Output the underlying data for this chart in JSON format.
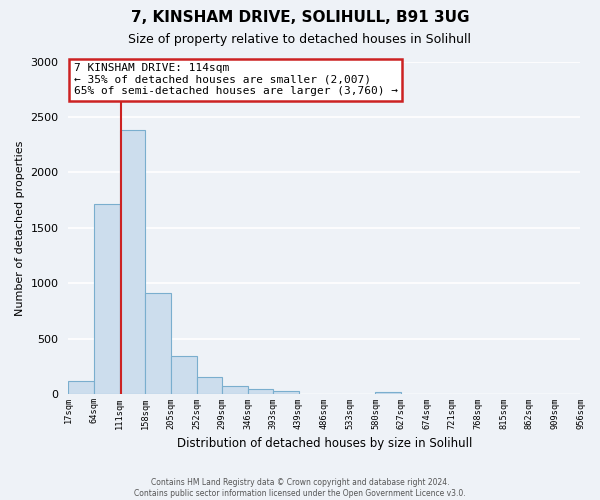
{
  "title": "7, KINSHAM DRIVE, SOLIHULL, B91 3UG",
  "subtitle": "Size of property relative to detached houses in Solihull",
  "xlabel": "Distribution of detached houses by size in Solihull",
  "ylabel": "Number of detached properties",
  "bar_edges": [
    17,
    64,
    111,
    158,
    205,
    252,
    299,
    346,
    393,
    439,
    486,
    533,
    580,
    627,
    674,
    721,
    768,
    815,
    862,
    909,
    956
  ],
  "bar_heights": [
    120,
    1720,
    2380,
    910,
    345,
    155,
    80,
    45,
    30,
    0,
    0,
    0,
    25,
    0,
    0,
    0,
    0,
    0,
    0,
    0
  ],
  "bar_color": "#ccdded",
  "bar_edge_color": "#7aaece",
  "property_line_x": 114,
  "ylim": [
    0,
    3000
  ],
  "yticks": [
    0,
    500,
    1000,
    1500,
    2000,
    2500,
    3000
  ],
  "annotation_title": "7 KINSHAM DRIVE: 114sqm",
  "annotation_line1": "← 35% of detached houses are smaller (2,007)",
  "annotation_line2": "65% of semi-detached houses are larger (3,760) →",
  "footer_line1": "Contains HM Land Registry data © Crown copyright and database right 2024.",
  "footer_line2": "Contains public sector information licensed under the Open Government Licence v3.0.",
  "tick_labels": [
    "17sqm",
    "64sqm",
    "111sqm",
    "158sqm",
    "205sqm",
    "252sqm",
    "299sqm",
    "346sqm",
    "393sqm",
    "439sqm",
    "486sqm",
    "533sqm",
    "580sqm",
    "627sqm",
    "674sqm",
    "721sqm",
    "768sqm",
    "815sqm",
    "862sqm",
    "909sqm",
    "956sqm"
  ],
  "background_color": "#eef2f7",
  "plot_bg_color": "#eef2f7",
  "grid_color": "#ffffff",
  "annotation_box_color": "#ffffff",
  "annotation_box_edge": "#cc2222",
  "property_line_color": "#cc2222"
}
